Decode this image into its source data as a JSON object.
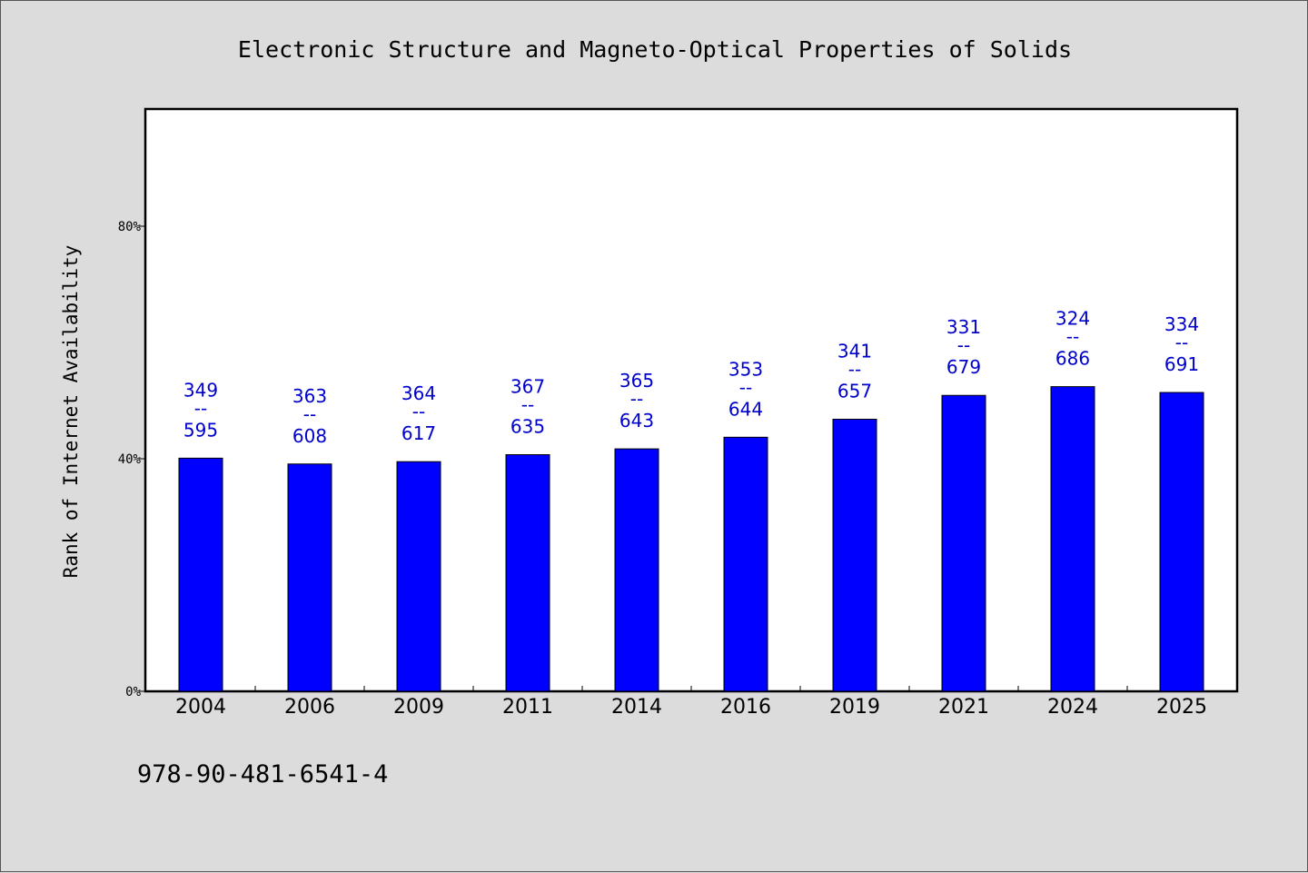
{
  "chart_data": {
    "type": "bar",
    "title": "Electronic Structure and Magneto-Optical Properties of Solids",
    "xlabel": "",
    "ylabel": "Rank of Internet Availability",
    "ylim": [
      0,
      100
    ],
    "yticks": [
      0,
      40,
      80
    ],
    "ytick_labels": [
      "0%",
      "40%",
      "80%"
    ],
    "grid": false,
    "bar_color": "#0000ff",
    "label_color": "#0000cc",
    "categories": [
      "2004",
      "2006",
      "2009",
      "2011",
      "2014",
      "2016",
      "2019",
      "2021",
      "2024",
      "2025"
    ],
    "values": [
      40.1,
      39.1,
      39.5,
      40.7,
      41.7,
      43.7,
      46.8,
      50.9,
      52.4,
      51.4
    ],
    "numerators": [
      "349",
      "363",
      "364",
      "367",
      "365",
      "353",
      "341",
      "331",
      "324",
      "334"
    ],
    "separator": "--",
    "denominators": [
      "595",
      "608",
      "617",
      "635",
      "643",
      "644",
      "657",
      "679",
      "686",
      "691"
    ]
  },
  "footer": {
    "isbn": "978-90-481-6541-4"
  }
}
